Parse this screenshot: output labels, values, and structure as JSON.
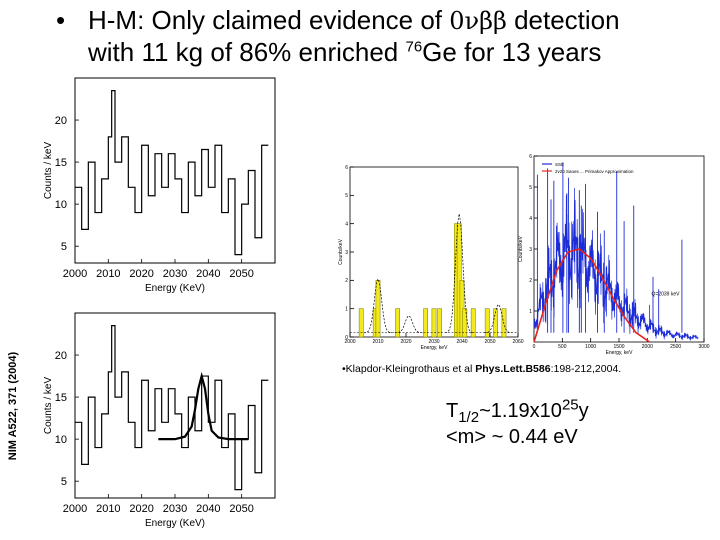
{
  "title": {
    "bullet": "•",
    "line1_pre": "H-M: Only claimed evidence of ",
    "line1_greek": "0νββ",
    "line1_post": " detection",
    "line2_pre": "with 11 kg of 86% enriched ",
    "line2_sup": "76",
    "line2_post": "Ge for 13 years"
  },
  "side_label": "NIM A522, 371 (2004)",
  "reference": {
    "authors": "•Klapdor-Kleingrothaus et al ",
    "journal": "Phys.Lett.B",
    "volume": "586",
    "pages": ":198-212,2004."
  },
  "result": {
    "line1_pre": "T",
    "line1_sub": "1/2",
    "line1_mid": "~1.19x10",
    "line1_sup": "25",
    "line1_post": "y",
    "line2": "<m> ~ 0.44 eV"
  },
  "chart_data": [
    {
      "type": "line",
      "title": "",
      "xlabel": "Energy (KeV)",
      "ylabel": "Counts / keV",
      "xlim": [
        2000,
        2060
      ],
      "ylim": [
        3,
        25
      ],
      "xticks": [
        2000,
        2010,
        2020,
        2030,
        2040,
        2050
      ],
      "yticks": [
        5,
        10,
        15,
        20
      ],
      "series": [
        {
          "style": "step",
          "x": [
            2000,
            2002,
            2004,
            2006,
            2008,
            2010,
            2011,
            2012,
            2014,
            2016,
            2018,
            2020,
            2022,
            2024,
            2026,
            2028,
            2030,
            2032,
            2034,
            2036,
            2038,
            2040,
            2042,
            2044,
            2046,
            2048,
            2050,
            2052,
            2054,
            2056
          ],
          "y": [
            12,
            7,
            15,
            9,
            13,
            18,
            23.5,
            15,
            18,
            12,
            9,
            17,
            11,
            16,
            12,
            16,
            13,
            9,
            15,
            11,
            16.5,
            12,
            17,
            9,
            13,
            4,
            10,
            14,
            6,
            17
          ]
        }
      ]
    },
    {
      "type": "line",
      "title": "",
      "xlabel": "Energy (KeV)",
      "ylabel": "Counts / keV",
      "xlim": [
        2000,
        2060
      ],
      "ylim": [
        3,
        25
      ],
      "xticks": [
        2000,
        2010,
        2020,
        2030,
        2040,
        2050
      ],
      "yticks": [
        5,
        10,
        15,
        20
      ],
      "series": [
        {
          "style": "step",
          "x": [
            2000,
            2002,
            2004,
            2006,
            2008,
            2010,
            2011,
            2012,
            2014,
            2016,
            2018,
            2020,
            2022,
            2024,
            2026,
            2028,
            2030,
            2032,
            2034,
            2036,
            2038,
            2040,
            2042,
            2044,
            2046,
            2048,
            2050,
            2052,
            2054,
            2056
          ],
          "y": [
            12,
            7,
            15,
            9,
            13,
            18,
            23.5,
            15,
            18,
            12,
            9,
            17,
            11,
            16,
            12,
            16,
            13,
            9,
            15,
            11,
            17.5,
            12,
            17,
            9,
            13,
            4,
            10,
            14,
            6,
            17
          ]
        },
        {
          "style": "fit",
          "x": [
            2025,
            2030,
            2033,
            2035,
            2036,
            2037,
            2038,
            2039,
            2040,
            2041,
            2043,
            2046,
            2052
          ],
          "y": [
            10,
            10,
            10.3,
            11.5,
            13.5,
            16,
            17.5,
            16,
            13,
            11,
            10.2,
            10,
            10
          ]
        }
      ]
    },
    {
      "type": "bar",
      "title": "",
      "xlabel": "Energy, keV",
      "ylabel": "Counts/keV",
      "xlim": [
        2000,
        2060
      ],
      "ylim": [
        0,
        6
      ],
      "xticks": [
        2000,
        2010,
        2020,
        2030,
        2040,
        2050,
        2060
      ],
      "yticks": [
        0,
        1,
        2,
        3,
        4,
        5,
        6
      ],
      "series": [
        {
          "name": "",
          "x": [
            2004,
            2009,
            2010,
            2017,
            2027,
            2030,
            2032,
            2038,
            2039,
            2040,
            2041,
            2044,
            2049,
            2052,
            2055
          ],
          "values": [
            1,
            1,
            2,
            1,
            1,
            1,
            1,
            4,
            4,
            2,
            1,
            1,
            1,
            1,
            1
          ]
        }
      ]
    },
    {
      "type": "line",
      "title": "",
      "xlabel": "Energy, keV",
      "ylabel": "Counts/keV",
      "xlim": [
        0,
        3000
      ],
      "ylim": [
        0,
        6
      ],
      "xticks": [
        0,
        500,
        1000,
        1500,
        2000,
        2500,
        3000
      ],
      "yticks": [
        1,
        2,
        3,
        4,
        5,
        6
      ],
      "legend": "top-left",
      "annotation": "Q=2039 keV",
      "series": [
        {
          "name": "SSE",
          "color": "#1c2dd8",
          "x": [
            0,
            200,
            400,
            500,
            600,
            800,
            1000,
            1200,
            1400,
            1600,
            1800,
            2000,
            2200,
            2400,
            2600,
            2800
          ],
          "y": [
            0.6,
            1.6,
            2.5,
            2.8,
            3.0,
            2.8,
            2.4,
            2.0,
            1.5,
            1.1,
            0.8,
            0.55,
            0.35,
            0.25,
            0.2,
            0.15
          ]
        },
        {
          "name": "2v2b Saoes ... Primakov Approximation",
          "color": "#e8241c",
          "x": [
            0,
            200,
            400,
            600,
            800,
            1000,
            1200,
            1400,
            1600,
            1800,
            2000,
            2039
          ],
          "y": [
            0,
            1.2,
            2.3,
            2.9,
            3.0,
            2.7,
            2.1,
            1.4,
            0.8,
            0.3,
            0.05,
            0
          ]
        }
      ]
    }
  ]
}
